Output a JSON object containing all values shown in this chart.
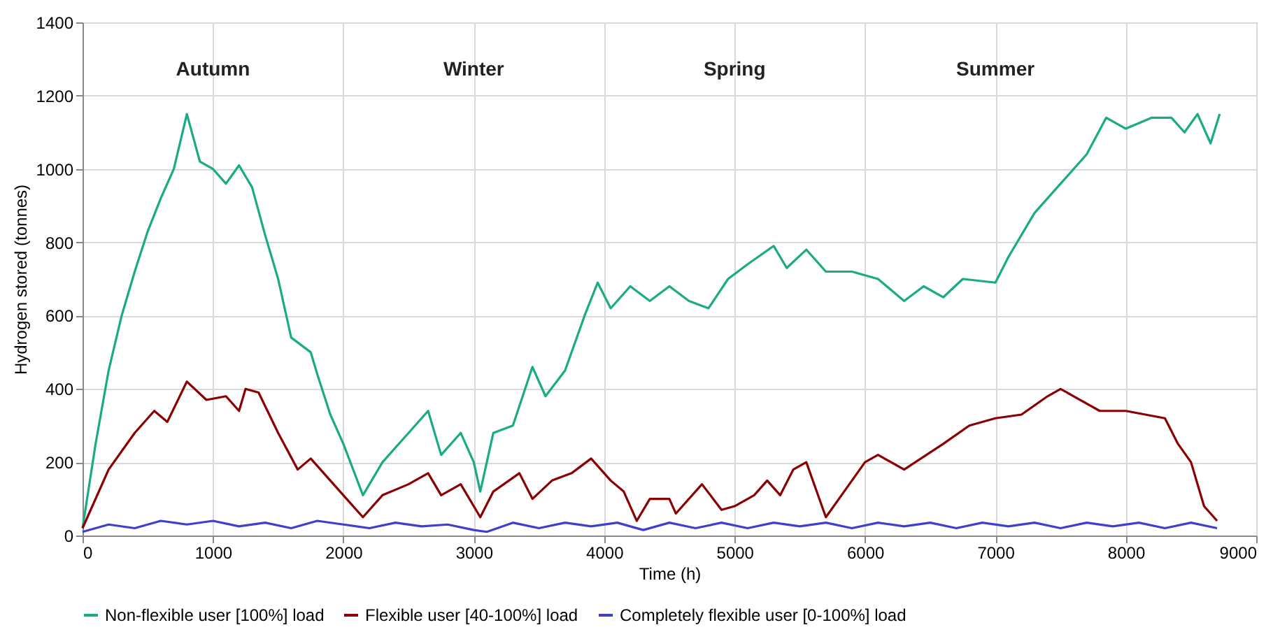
{
  "chart_data": {
    "type": "line",
    "xlabel": "Time (h)",
    "ylabel": "Hydrogen stored (tonnes)",
    "xlim": [
      0,
      9000
    ],
    "xticks": [
      0,
      1000,
      2000,
      3000,
      4000,
      5000,
      6000,
      7000,
      8000,
      9000
    ],
    "ylim": [
      0,
      1400
    ],
    "yticks": [
      0,
      200,
      400,
      600,
      800,
      1000,
      1200,
      1400
    ],
    "grid": true,
    "legend": "bottom",
    "marker": "none",
    "line_style": "solid",
    "annotations": [
      "Autumn",
      "Winter",
      "Spring",
      "Summer"
    ],
    "series": [
      {
        "name": "Non-flexible user [100%] load",
        "color": "#1aab84",
        "x": [
          0,
          100,
          200,
          300,
          400,
          500,
          600,
          700,
          800,
          900,
          1000,
          1100,
          1200,
          1300,
          1400,
          1500,
          1600,
          1750,
          1800,
          1900,
          2000,
          2150,
          2300,
          2500,
          2650,
          2750,
          2900,
          3000,
          3050,
          3150,
          3300,
          3450,
          3550,
          3700,
          3850,
          3950,
          4050,
          4200,
          4350,
          4500,
          4650,
          4800,
          4950,
          5100,
          5300,
          5400,
          5550,
          5700,
          5900,
          6100,
          6300,
          6450,
          6600,
          6750,
          7000,
          7100,
          7300,
          7500,
          7700,
          7850,
          8000,
          8200,
          8350,
          8450,
          8550,
          8650,
          8720
        ],
        "values": [
          20,
          250,
          450,
          600,
          720,
          830,
          920,
          1000,
          1150,
          1020,
          1000,
          960,
          1010,
          950,
          820,
          700,
          540,
          500,
          440,
          330,
          250,
          110,
          200,
          280,
          340,
          220,
          280,
          200,
          120,
          280,
          300,
          460,
          380,
          450,
          600,
          690,
          620,
          680,
          640,
          680,
          640,
          620,
          700,
          740,
          790,
          730,
          780,
          720,
          720,
          700,
          640,
          680,
          650,
          700,
          690,
          760,
          880,
          960,
          1040,
          1140,
          1110,
          1140,
          1140,
          1100,
          1150,
          1070,
          1150
        ]
      },
      {
        "name": "Flexible user [40-100%] load",
        "color": "#8b0000",
        "x": [
          0,
          200,
          400,
          550,
          650,
          800,
          950,
          1100,
          1200,
          1250,
          1350,
          1500,
          1650,
          1750,
          1900,
          2050,
          2150,
          2300,
          2500,
          2650,
          2750,
          2900,
          3050,
          3150,
          3350,
          3450,
          3600,
          3750,
          3900,
          4050,
          4150,
          4250,
          4350,
          4500,
          4550,
          4750,
          4900,
          5000,
          5150,
          5250,
          5350,
          5450,
          5550,
          5700,
          5800,
          6000,
          6100,
          6300,
          6600,
          6800,
          7000,
          7200,
          7400,
          7500,
          7600,
          7800,
          8000,
          8150,
          8300,
          8400,
          8500,
          8600,
          8700
        ],
        "values": [
          20,
          180,
          280,
          340,
          310,
          420,
          370,
          380,
          340,
          400,
          390,
          280,
          180,
          210,
          150,
          90,
          50,
          110,
          140,
          170,
          110,
          140,
          50,
          120,
          170,
          100,
          150,
          170,
          210,
          150,
          120,
          40,
          100,
          100,
          60,
          140,
          70,
          80,
          110,
          150,
          110,
          180,
          200,
          50,
          100,
          200,
          220,
          180,
          250,
          300,
          320,
          330,
          380,
          400,
          380,
          340,
          340,
          330,
          320,
          250,
          200,
          80,
          40
        ]
      },
      {
        "name": "Completely flexible user [0-100%] load",
        "color": "#3f3fcf",
        "x": [
          0,
          200,
          400,
          600,
          800,
          1000,
          1200,
          1400,
          1600,
          1800,
          2000,
          2200,
          2400,
          2600,
          2800,
          3000,
          3100,
          3300,
          3500,
          3700,
          3900,
          4100,
          4300,
          4500,
          4700,
          4900,
          5100,
          5300,
          5500,
          5700,
          5900,
          6100,
          6300,
          6500,
          6700,
          6900,
          7100,
          7300,
          7500,
          7700,
          7900,
          8100,
          8300,
          8500,
          8700
        ],
        "values": [
          10,
          30,
          20,
          40,
          30,
          40,
          25,
          35,
          20,
          40,
          30,
          20,
          35,
          25,
          30,
          15,
          10,
          35,
          20,
          35,
          25,
          35,
          15,
          35,
          20,
          35,
          20,
          35,
          25,
          35,
          20,
          35,
          25,
          35,
          20,
          35,
          25,
          35,
          20,
          35,
          25,
          35,
          20,
          35,
          20
        ]
      }
    ]
  }
}
